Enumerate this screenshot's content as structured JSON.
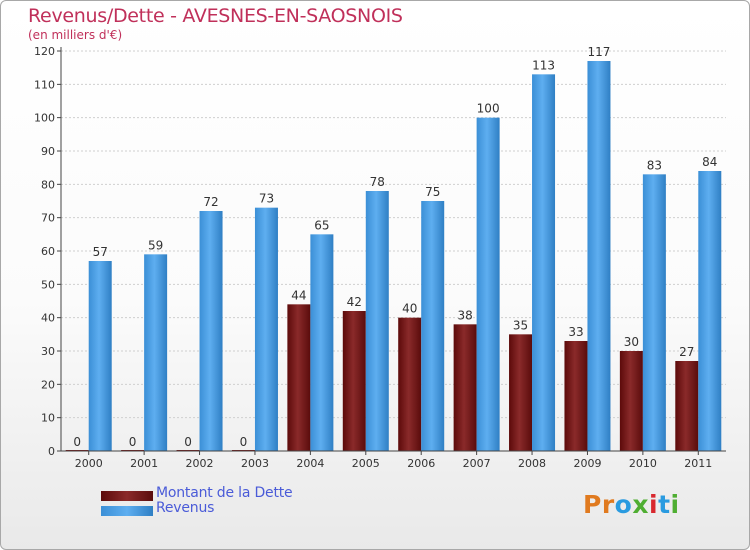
{
  "header": {
    "title": "Revenus/Dette - AVESNES-EN-SAOSNOIS",
    "subtitle": "(en milliers d'€)"
  },
  "legend": {
    "items": [
      {
        "label": "Montant de la Dette",
        "color": "#7a1515"
      },
      {
        "label": "Revenus",
        "color": "#3a95de"
      }
    ]
  },
  "logo": {
    "text": "Proxiti",
    "letter_colors": [
      "#e07a1f",
      "#e07a1f",
      "#2a9be0",
      "#4fae32",
      "#d8282e",
      "#2a9be0",
      "#4fae32"
    ]
  },
  "chart_data": {
    "type": "bar",
    "title": "Revenus/Dette - AVESNES-EN-SAOSNOIS",
    "subtitle": "(en milliers d'€)",
    "xlabel": "",
    "ylabel": "",
    "ylim": [
      0,
      120
    ],
    "yticks": [
      0,
      10,
      20,
      30,
      40,
      50,
      60,
      70,
      80,
      90,
      100,
      110,
      120
    ],
    "grid": true,
    "legend_position": "bottom-left",
    "categories": [
      "2000",
      "2001",
      "2002",
      "2003",
      "2004",
      "2005",
      "2006",
      "2007",
      "2008",
      "2009",
      "2010",
      "2011"
    ],
    "series": [
      {
        "name": "Montant de la Dette",
        "color": "#7a1515",
        "values": [
          0,
          0,
          0,
          0,
          44,
          42,
          40,
          38,
          35,
          33,
          30,
          27
        ]
      },
      {
        "name": "Revenus",
        "color": "#3a95de",
        "values": [
          57,
          59,
          72,
          73,
          65,
          78,
          75,
          100,
          113,
          117,
          83,
          84
        ]
      }
    ]
  }
}
